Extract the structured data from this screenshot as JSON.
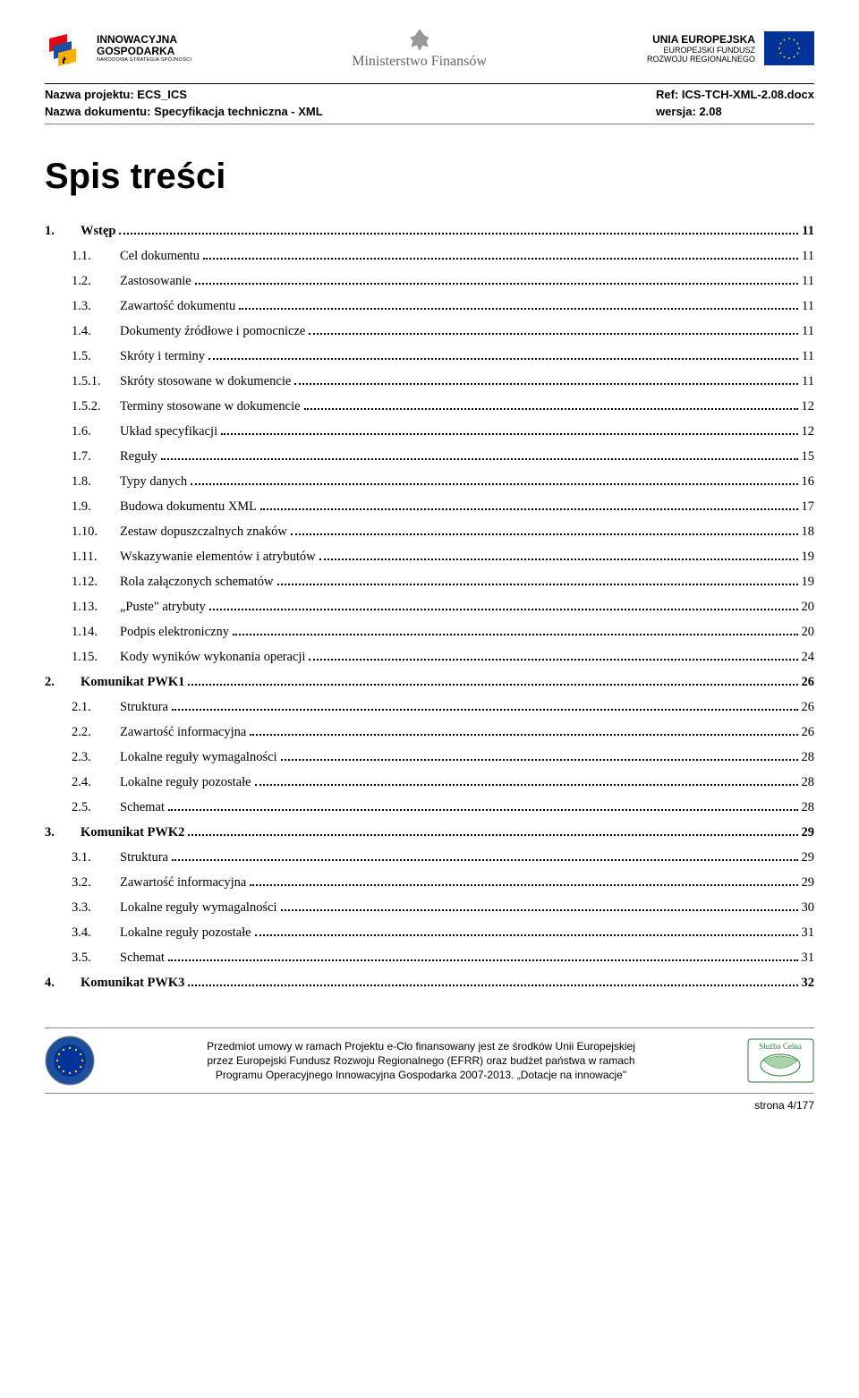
{
  "header": {
    "logo_ig": {
      "line1": "INNOWACYJNA",
      "line2": "GOSPODARKA",
      "sub": "NARODOWA STRATEGIA SPÓJNOŚCI"
    },
    "logo_mf": "Ministerstwo Finansów",
    "logo_eu": {
      "main": "UNIA EUROPEJSKA",
      "sub1": "EUROPEJSKI FUNDUSZ",
      "sub2": "ROZWOJU REGIONALNEGO"
    }
  },
  "meta": {
    "project_label": "Nazwa projektu: ECS_ICS",
    "doc_label": "Nazwa dokumentu: Specyfikacja techniczna - XML",
    "ref_label": "Ref: ICS-TCH-XML-2.08.docx",
    "version_label": "wersja: 2.08"
  },
  "toc": {
    "title": "Spis treści",
    "entries": [
      {
        "level": 1,
        "num": "1.",
        "label": "Wstęp",
        "page": "11"
      },
      {
        "level": 2,
        "num": "1.1.",
        "label": "Cel dokumentu",
        "page": "11"
      },
      {
        "level": 2,
        "num": "1.2.",
        "label": "Zastosowanie",
        "page": "11"
      },
      {
        "level": 2,
        "num": "1.3.",
        "label": "Zawartość dokumentu",
        "page": "11"
      },
      {
        "level": 2,
        "num": "1.4.",
        "label": "Dokumenty źródłowe i pomocnicze",
        "page": "11"
      },
      {
        "level": 2,
        "num": "1.5.",
        "label": "Skróty i terminy",
        "page": "11"
      },
      {
        "level": 2,
        "num": "1.5.1.",
        "label": "Skróty stosowane w dokumencie",
        "page": "11"
      },
      {
        "level": 2,
        "num": "1.5.2.",
        "label": "Terminy stosowane w dokumencie",
        "page": "12"
      },
      {
        "level": 2,
        "num": "1.6.",
        "label": "Układ specyfikacji",
        "page": "12"
      },
      {
        "level": 2,
        "num": "1.7.",
        "label": "Reguły",
        "page": "15"
      },
      {
        "level": 2,
        "num": "1.8.",
        "label": "Typy danych",
        "page": "16"
      },
      {
        "level": 2,
        "num": "1.9.",
        "label": "Budowa dokumentu XML",
        "page": "17"
      },
      {
        "level": 2,
        "num": "1.10.",
        "label": "Zestaw dopuszczalnych znaków",
        "page": "18"
      },
      {
        "level": 2,
        "num": "1.11.",
        "label": "Wskazywanie elementów i atrybutów",
        "page": "19"
      },
      {
        "level": 2,
        "num": "1.12.",
        "label": "Rola załączonych schematów",
        "page": "19"
      },
      {
        "level": 2,
        "num": "1.13.",
        "label": "„Puste\" atrybuty",
        "page": "20"
      },
      {
        "level": 2,
        "num": "1.14.",
        "label": "Podpis elektroniczny",
        "page": "20"
      },
      {
        "level": 2,
        "num": "1.15.",
        "label": "Kody wyników wykonania operacji",
        "page": "24"
      },
      {
        "level": 1,
        "num": "2.",
        "label": "Komunikat PWK1",
        "page": "26"
      },
      {
        "level": 2,
        "num": "2.1.",
        "label": "Struktura",
        "page": "26"
      },
      {
        "level": 2,
        "num": "2.2.",
        "label": "Zawartość informacyjna",
        "page": "26"
      },
      {
        "level": 2,
        "num": "2.3.",
        "label": "Lokalne reguły wymagalności",
        "page": "28"
      },
      {
        "level": 2,
        "num": "2.4.",
        "label": "Lokalne reguły pozostałe",
        "page": "28"
      },
      {
        "level": 2,
        "num": "2.5.",
        "label": "Schemat",
        "page": "28"
      },
      {
        "level": 1,
        "num": "3.",
        "label": "Komunikat PWK2",
        "page": "29"
      },
      {
        "level": 2,
        "num": "3.1.",
        "label": "Struktura",
        "page": "29"
      },
      {
        "level": 2,
        "num": "3.2.",
        "label": "Zawartość informacyjna",
        "page": "29"
      },
      {
        "level": 2,
        "num": "3.3.",
        "label": "Lokalne reguły wymagalności",
        "page": "30"
      },
      {
        "level": 2,
        "num": "3.4.",
        "label": "Lokalne reguły pozostałe",
        "page": "31"
      },
      {
        "level": 2,
        "num": "3.5.",
        "label": "Schemat",
        "page": "31"
      },
      {
        "level": 1,
        "num": "4.",
        "label": "Komunikat PWK3",
        "page": "32"
      }
    ]
  },
  "footer": {
    "text_line1": "Przedmiot umowy w ramach Projektu e-Cło finansowany jest ze środków Unii Europejskiej",
    "text_line2": "przez Europejski Fundusz Rozwoju Regionalnego (EFRR) oraz budżet państwa w ramach",
    "text_line3": "Programu Operacyjnego Innowacyjna Gospodarka 2007-2013. „Dotacje na innowacje\"",
    "page_num": "strona 4/177",
    "badge_right": "Służba Celna"
  }
}
